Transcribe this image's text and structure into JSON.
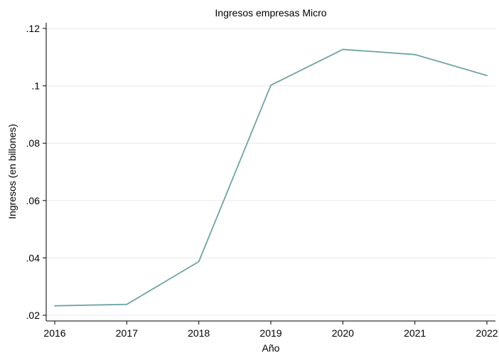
{
  "chart_data": {
    "type": "line",
    "title": "Ingresos empresas Micro",
    "xlabel": "Año",
    "ylabel": "Ingresos (en billones)",
    "x": [
      2016,
      2017,
      2018,
      2019,
      2020,
      2021,
      2022
    ],
    "series": [
      {
        "values": [
          0.0233,
          0.0238,
          0.0387,
          0.1002,
          0.1127,
          0.1109,
          0.1036
        ]
      }
    ],
    "xticks": [
      {
        "value": 2016,
        "label": "2016"
      },
      {
        "value": 2017,
        "label": "2017"
      },
      {
        "value": 2018,
        "label": "2018"
      },
      {
        "value": 2019,
        "label": "2019"
      },
      {
        "value": 2020,
        "label": "2020"
      },
      {
        "value": 2021,
        "label": "2021"
      },
      {
        "value": 2022,
        "label": "2022"
      }
    ],
    "yticks": [
      {
        "value": 0.02,
        "label": ".02"
      },
      {
        "value": 0.04,
        "label": ".04"
      },
      {
        "value": 0.06,
        "label": ".06"
      },
      {
        "value": 0.08,
        "label": ".08"
      },
      {
        "value": 0.1,
        "label": ".1"
      },
      {
        "value": 0.12,
        "label": ".12"
      }
    ],
    "xlim": [
      2016,
      2022
    ],
    "ylim": [
      0.02,
      0.12
    ],
    "grid": "horizontal",
    "legend": "none",
    "colors": {
      "line": "#6fa4a6",
      "grid": "#e8e8e8",
      "axis": "#000000",
      "background": "#ffffff"
    }
  }
}
